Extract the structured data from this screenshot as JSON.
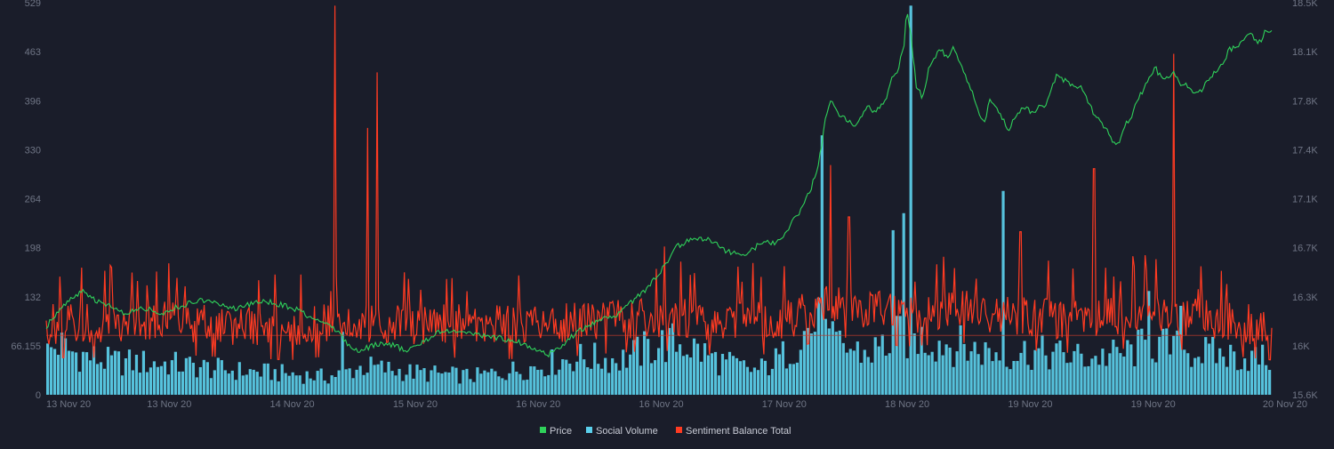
{
  "chart_data": {
    "type": "line",
    "title": "",
    "legend_position": "bottom-center",
    "grid": false,
    "x_axis": {
      "ticks": [
        "13 Nov 20",
        "13 Nov 20",
        "14 Nov 20",
        "15 Nov 20",
        "16 Nov 20",
        "16 Nov 20",
        "17 Nov 20",
        "18 Nov 20",
        "19 Nov 20",
        "19 Nov 20",
        "20 Nov 20"
      ],
      "range_days": [
        0,
        7
      ]
    },
    "y_left": {
      "ticks": [
        "529",
        "463",
        "396",
        "330",
        "264",
        "198",
        "132",
        "66.155",
        "0"
      ],
      "range": [
        0,
        529
      ]
    },
    "y_right": {
      "ticks": [
        "18.5K",
        "18.1K",
        "17.8K",
        "17.4K",
        "17.1K",
        "16.7K",
        "16.3K",
        "16K",
        "15.6K"
      ],
      "range": [
        15600,
        18500
      ]
    },
    "reference_line": {
      "axis": "left",
      "value": 80
    },
    "series": [
      {
        "name": "Price",
        "axis": "right",
        "style": "line",
        "color": "#2fd15a",
        "points": [
          [
            0.0,
            16100
          ],
          [
            0.12,
            16250
          ],
          [
            0.22,
            16320
          ],
          [
            0.3,
            16360
          ],
          [
            0.4,
            16300
          ],
          [
            0.55,
            16240
          ],
          [
            0.65,
            16200
          ],
          [
            0.8,
            16240
          ],
          [
            0.95,
            16200
          ],
          [
            1.1,
            16260
          ],
          [
            1.25,
            16300
          ],
          [
            1.4,
            16280
          ],
          [
            1.55,
            16230
          ],
          [
            1.75,
            16300
          ],
          [
            1.9,
            16270
          ],
          [
            2.05,
            16230
          ],
          [
            2.2,
            16150
          ],
          [
            2.3,
            16120
          ],
          [
            2.4,
            16050
          ],
          [
            2.48,
            15950
          ],
          [
            2.55,
            15920
          ],
          [
            2.65,
            15960
          ],
          [
            2.75,
            15980
          ],
          [
            2.85,
            15960
          ],
          [
            2.95,
            15920
          ],
          [
            3.05,
            15980
          ],
          [
            3.2,
            16060
          ],
          [
            3.35,
            16070
          ],
          [
            3.5,
            16040
          ],
          [
            3.7,
            16020
          ],
          [
            3.85,
            15990
          ],
          [
            4.0,
            15930
          ],
          [
            4.1,
            15900
          ],
          [
            4.2,
            15960
          ],
          [
            4.3,
            16040
          ],
          [
            4.4,
            16100
          ],
          [
            4.5,
            16150
          ],
          [
            4.6,
            16170
          ],
          [
            4.7,
            16220
          ],
          [
            4.75,
            16260
          ],
          [
            4.85,
            16350
          ],
          [
            4.92,
            16400
          ],
          [
            5.0,
            16500
          ],
          [
            5.08,
            16600
          ],
          [
            5.15,
            16700
          ],
          [
            5.22,
            16730
          ],
          [
            5.3,
            16760
          ],
          [
            5.38,
            16750
          ],
          [
            5.45,
            16730
          ],
          [
            5.55,
            16660
          ],
          [
            5.65,
            16640
          ],
          [
            5.72,
            16650
          ],
          [
            5.8,
            16700
          ],
          [
            5.88,
            16730
          ],
          [
            5.95,
            16720
          ],
          [
            6.05,
            16800
          ],
          [
            6.1,
            16900
          ],
          [
            6.15,
            16950
          ],
          [
            6.2,
            17050
          ],
          [
            6.25,
            17150
          ],
          [
            6.3,
            17300
          ],
          [
            6.33,
            17450
          ],
          [
            6.36,
            17650
          ],
          [
            6.4,
            17780
          ],
          [
            6.45,
            17700
          ],
          [
            6.5,
            17650
          ],
          [
            6.55,
            17620
          ],
          [
            6.6,
            17580
          ],
          [
            6.65,
            17660
          ],
          [
            6.7,
            17730
          ],
          [
            6.75,
            17690
          ],
          [
            6.8,
            17720
          ],
          [
            6.85,
            17780
          ],
          [
            6.9,
            17930
          ],
          [
            6.95,
            18000
          ],
          [
            7.0,
            18200
          ],
          [
            7.02,
            18440
          ],
          [
            7.05,
            18300
          ],
          [
            7.1,
            17880
          ],
          [
            7.15,
            17800
          ],
          [
            7.2,
            18000
          ],
          [
            7.25,
            18100
          ],
          [
            7.3,
            18150
          ],
          [
            7.35,
            18100
          ],
          [
            7.4,
            18160
          ],
          [
            7.45,
            18080
          ],
          [
            7.5,
            17950
          ],
          [
            7.55,
            17850
          ],
          [
            7.6,
            17720
          ],
          [
            7.65,
            17600
          ],
          [
            7.7,
            17780
          ],
          [
            7.75,
            17730
          ],
          [
            7.8,
            17650
          ],
          [
            7.85,
            17560
          ],
          [
            7.9,
            17650
          ],
          [
            7.95,
            17700
          ],
          [
            8.0,
            17740
          ],
          [
            8.05,
            17670
          ],
          [
            8.1,
            17750
          ],
          [
            8.15,
            17720
          ],
          [
            8.2,
            17850
          ],
          [
            8.25,
            17980
          ],
          [
            8.3,
            17930
          ],
          [
            8.35,
            17900
          ],
          [
            8.4,
            17870
          ],
          [
            8.45,
            17880
          ],
          [
            8.5,
            17760
          ],
          [
            8.55,
            17680
          ],
          [
            8.6,
            17620
          ],
          [
            8.65,
            17560
          ],
          [
            8.7,
            17480
          ],
          [
            8.75,
            17440
          ],
          [
            8.8,
            17600
          ],
          [
            8.85,
            17650
          ],
          [
            8.9,
            17780
          ],
          [
            8.95,
            17850
          ],
          [
            9.0,
            17930
          ],
          [
            9.05,
            18020
          ],
          [
            9.1,
            17940
          ],
          [
            9.15,
            17950
          ],
          [
            9.2,
            17980
          ],
          [
            9.25,
            17900
          ],
          [
            9.3,
            17900
          ],
          [
            9.35,
            17850
          ],
          [
            9.4,
            17820
          ],
          [
            9.45,
            17880
          ],
          [
            9.5,
            17950
          ],
          [
            9.55,
            17990
          ],
          [
            9.6,
            18050
          ],
          [
            9.65,
            18150
          ],
          [
            9.7,
            18170
          ],
          [
            9.75,
            18200
          ],
          [
            9.8,
            18280
          ],
          [
            9.85,
            18250
          ],
          [
            9.88,
            18200
          ],
          [
            9.92,
            18230
          ],
          [
            9.95,
            18300
          ],
          [
            10.0,
            18300
          ]
        ]
      },
      {
        "name": "Social Volume",
        "axis": "left",
        "style": "bar",
        "color": "#5bd0ec",
        "profile": [
          [
            0,
            55
          ],
          [
            0.1,
            68
          ],
          [
            0.2,
            58
          ],
          [
            0.5,
            45
          ],
          [
            1.0,
            42
          ],
          [
            1.5,
            33
          ],
          [
            2.0,
            28
          ],
          [
            2.3,
            24
          ],
          [
            2.6,
            38
          ],
          [
            3.0,
            30
          ],
          [
            3.5,
            25
          ],
          [
            4.0,
            38
          ],
          [
            4.3,
            50
          ],
          [
            4.7,
            48
          ],
          [
            5.0,
            68
          ],
          [
            5.2,
            70
          ],
          [
            5.5,
            45
          ],
          [
            5.8,
            32
          ],
          [
            6.0,
            50
          ],
          [
            6.2,
            85
          ],
          [
            6.3,
            95
          ],
          [
            6.4,
            70
          ],
          [
            6.7,
            55
          ],
          [
            7.0,
            80
          ],
          [
            7.3,
            72
          ],
          [
            7.6,
            60
          ],
          [
            7.8,
            55
          ],
          [
            8.0,
            58
          ],
          [
            8.5,
            50
          ],
          [
            8.8,
            55
          ],
          [
            9.0,
            68
          ],
          [
            9.5,
            55
          ],
          [
            10.0,
            48
          ]
        ],
        "spikes": [
          [
            2.42,
            85
          ],
          [
            6.32,
            350
          ],
          [
            6.9,
            222
          ],
          [
            7.0,
            245
          ],
          [
            7.05,
            525
          ],
          [
            7.8,
            275
          ],
          [
            9.0,
            140
          ],
          [
            9.25,
            120
          ]
        ]
      },
      {
        "name": "Sentiment Balance Total",
        "axis": "left",
        "style": "line",
        "color": "#ff3b22",
        "profile": [
          [
            0,
            95
          ],
          [
            0.5,
            95
          ],
          [
            1.0,
            100
          ],
          [
            1.5,
            95
          ],
          [
            2.0,
            92
          ],
          [
            2.5,
            100
          ],
          [
            3.0,
            95
          ],
          [
            3.5,
            95
          ],
          [
            4.0,
            92
          ],
          [
            4.5,
            100
          ],
          [
            5.0,
            105
          ],
          [
            5.5,
            98
          ],
          [
            6.0,
            100
          ],
          [
            6.4,
            125
          ],
          [
            6.8,
            115
          ],
          [
            7.0,
            110
          ],
          [
            7.5,
            115
          ],
          [
            8.0,
            105
          ],
          [
            8.5,
            100
          ],
          [
            9.0,
            112
          ],
          [
            9.5,
            100
          ],
          [
            10.0,
            92
          ]
        ],
        "spikes": [
          [
            2.36,
            525
          ],
          [
            2.62,
            360
          ],
          [
            2.7,
            435
          ],
          [
            5.04,
            200
          ],
          [
            6.4,
            310
          ],
          [
            6.55,
            240
          ],
          [
            7.95,
            220
          ],
          [
            8.55,
            305
          ],
          [
            9.2,
            460
          ]
        ]
      }
    ]
  }
}
